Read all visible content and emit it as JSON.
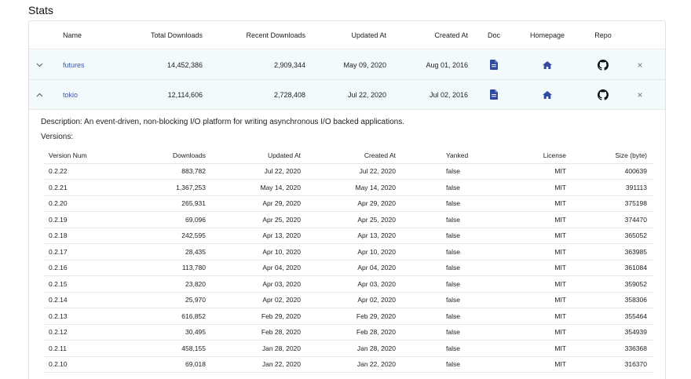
{
  "page": {
    "title": "Stats"
  },
  "colors": {
    "accent": "#2f4aa0",
    "row_highlight": "#f3fafb",
    "link": "#3b55a8"
  },
  "crates": {
    "headers": {
      "name": "Name",
      "total": "Total Downloads",
      "recent": "Recent Downloads",
      "updated": "Updated At",
      "created": "Created At",
      "doc": "Doc",
      "homepage": "Homepage",
      "repo": "Repo"
    },
    "rows": [
      {
        "expand_icon": "chevron-down-icon",
        "name": "futures",
        "total": "14,452,386",
        "recent": "2,909,344",
        "updated": "May 09, 2020",
        "created": "Aug 01, 2016"
      },
      {
        "expand_icon": "chevron-up-icon",
        "name": "tokio",
        "total": "12,114,606",
        "recent": "2,728,408",
        "updated": "Jul 22, 2020",
        "created": "Jul 02, 2016"
      }
    ],
    "icons": {
      "doc": "document-icon",
      "homepage": "home-icon",
      "repo": "github-icon",
      "remove": "close-icon"
    },
    "close_glyph": "×",
    "chev_down": "⌄",
    "chev_up": "^"
  },
  "detail": {
    "description": "Description: An event-driven, non-blocking I/O platform for writing asynchronous I/O backed applications.",
    "versions_label": "Versions:",
    "headers": {
      "num": "Version Num",
      "downloads": "Downloads",
      "updated": "Updated At",
      "created": "Created At",
      "yanked": "Yanked",
      "license": "License",
      "size": "Size (byte)"
    },
    "versions": [
      {
        "num": "0.2.22",
        "downloads": "883,782",
        "updated": "Jul 22, 2020",
        "created": "Jul 22, 2020",
        "yanked": "false",
        "license": "MIT",
        "size": "400639"
      },
      {
        "num": "0.2.21",
        "downloads": "1,367,253",
        "updated": "May 14, 2020",
        "created": "May 14, 2020",
        "yanked": "false",
        "license": "MIT",
        "size": "391113"
      },
      {
        "num": "0.2.20",
        "downloads": "265,931",
        "updated": "Apr 29, 2020",
        "created": "Apr 29, 2020",
        "yanked": "false",
        "license": "MIT",
        "size": "375198"
      },
      {
        "num": "0.2.19",
        "downloads": "69,096",
        "updated": "Apr 25, 2020",
        "created": "Apr 25, 2020",
        "yanked": "false",
        "license": "MIT",
        "size": "374470"
      },
      {
        "num": "0.2.18",
        "downloads": "242,595",
        "updated": "Apr 13, 2020",
        "created": "Apr 13, 2020",
        "yanked": "false",
        "license": "MIT",
        "size": "365052"
      },
      {
        "num": "0.2.17",
        "downloads": "28,435",
        "updated": "Apr 10, 2020",
        "created": "Apr 10, 2020",
        "yanked": "false",
        "license": "MIT",
        "size": "363985"
      },
      {
        "num": "0.2.16",
        "downloads": "113,780",
        "updated": "Apr 04, 2020",
        "created": "Apr 04, 2020",
        "yanked": "false",
        "license": "MIT",
        "size": "361084"
      },
      {
        "num": "0.2.15",
        "downloads": "23,820",
        "updated": "Apr 03, 2020",
        "created": "Apr 03, 2020",
        "yanked": "false",
        "license": "MIT",
        "size": "359052"
      },
      {
        "num": "0.2.14",
        "downloads": "25,970",
        "updated": "Apr 02, 2020",
        "created": "Apr 02, 2020",
        "yanked": "false",
        "license": "MIT",
        "size": "358306"
      },
      {
        "num": "0.2.13",
        "downloads": "616,852",
        "updated": "Feb 29, 2020",
        "created": "Feb 29, 2020",
        "yanked": "false",
        "license": "MIT",
        "size": "355464"
      },
      {
        "num": "0.2.12",
        "downloads": "30,495",
        "updated": "Feb 28, 2020",
        "created": "Feb 28, 2020",
        "yanked": "false",
        "license": "MIT",
        "size": "354939"
      },
      {
        "num": "0.2.11",
        "downloads": "458,155",
        "updated": "Jan 28, 2020",
        "created": "Jan 28, 2020",
        "yanked": "false",
        "license": "MIT",
        "size": "336368"
      },
      {
        "num": "0.2.10",
        "downloads": "69,018",
        "updated": "Jan 22, 2020",
        "created": "Jan 22, 2020",
        "yanked": "false",
        "license": "MIT",
        "size": "316370"
      }
    ]
  }
}
